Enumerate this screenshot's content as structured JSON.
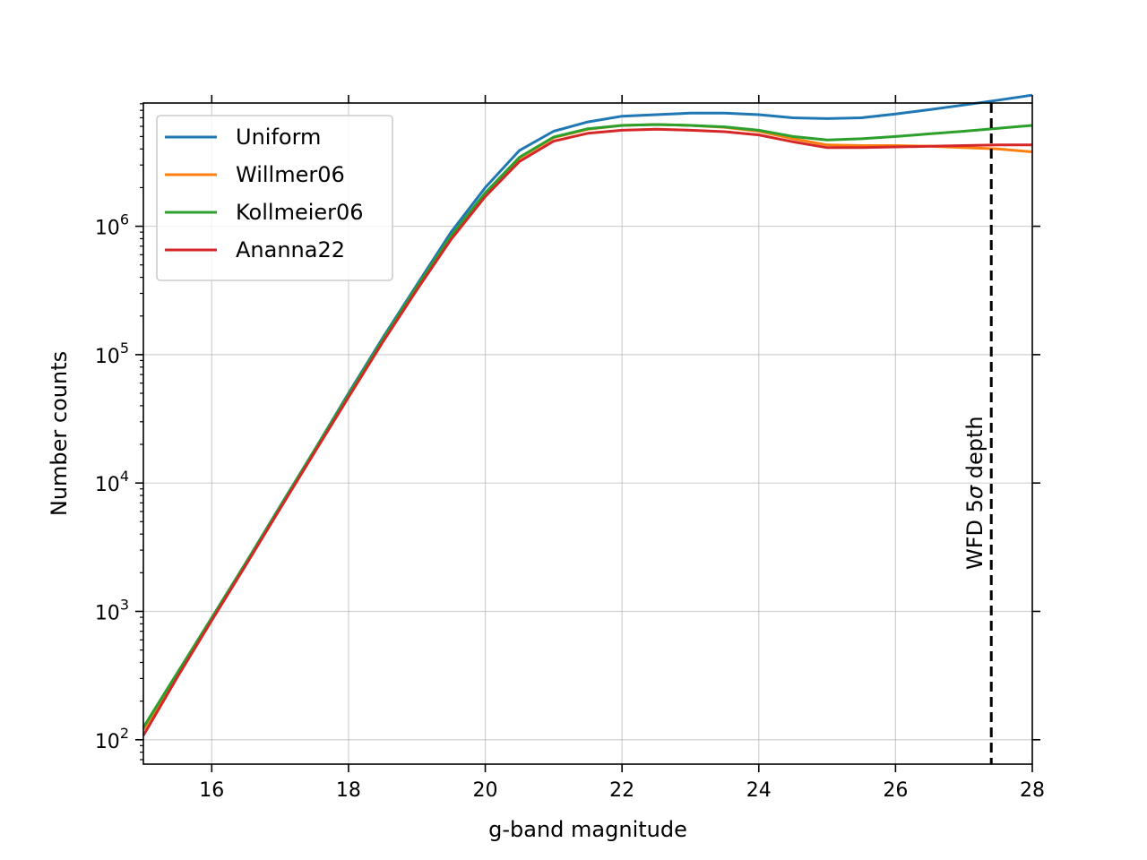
{
  "chart_data": {
    "type": "line",
    "xlabel": "g-band magnitude",
    "ylabel": "Number counts",
    "xlim": [
      15,
      28
    ],
    "ylim_log10": [
      1.81,
      6.96
    ],
    "yscale": "log",
    "grid": true,
    "legend_position": "upper-left",
    "x_ticks": [
      16,
      18,
      20,
      22,
      24,
      26,
      28
    ],
    "x_tick_labels": [
      "16",
      "18",
      "20",
      "22",
      "24",
      "26",
      "28"
    ],
    "y_ticks_log10": [
      2,
      3,
      4,
      5,
      6
    ],
    "y_tick_labels": [
      {
        "base": "10",
        "exp": "2"
      },
      {
        "base": "10",
        "exp": "3"
      },
      {
        "base": "10",
        "exp": "4"
      },
      {
        "base": "10",
        "exp": "5"
      },
      {
        "base": "10",
        "exp": "6"
      }
    ],
    "x": [
      15,
      15.5,
      16,
      16.5,
      17,
      17.5,
      18,
      18.5,
      19,
      19.5,
      20,
      20.5,
      21,
      21.5,
      22,
      22.5,
      23,
      23.5,
      24,
      24.5,
      25,
      25.5,
      26,
      26.5,
      27,
      27.5,
      28
    ],
    "series": [
      {
        "name": "Uniform",
        "color": "#1f77b4",
        "values": [
          120,
          330,
          890,
          2400,
          6600,
          18000,
          50000,
          135000,
          350000,
          900000,
          2000000,
          3900000,
          5500000,
          6500000,
          7200000,
          7400000,
          7600000,
          7600000,
          7400000,
          7000000,
          6900000,
          7000000,
          7500000,
          8100000,
          8800000,
          9600000,
          10500000
        ]
      },
      {
        "name": "Willmer06",
        "color": "#ff7f0e",
        "values": [
          120,
          330,
          880,
          2380,
          6500,
          17800,
          48500,
          130000,
          335000,
          840000,
          1800000,
          3400000,
          4900000,
          5700000,
          6100000,
          6200000,
          6100000,
          5900000,
          5500000,
          4800000,
          4300000,
          4250000,
          4250000,
          4200000,
          4100000,
          4000000,
          3800000
        ]
      },
      {
        "name": "Kollmeier06",
        "color": "#2ca02c",
        "values": [
          125,
          335,
          890,
          2400,
          6550,
          17900,
          48800,
          131000,
          338000,
          845000,
          1820000,
          3450000,
          4950000,
          5750000,
          6100000,
          6200000,
          6100000,
          5950000,
          5600000,
          5000000,
          4700000,
          4800000,
          5000000,
          5250000,
          5500000,
          5800000,
          6100000
        ]
      },
      {
        "name": "Ananna22",
        "color": "#d62728",
        "values": [
          108,
          310,
          850,
          2300,
          6300,
          17200,
          46500,
          125000,
          320000,
          790000,
          1700000,
          3200000,
          4600000,
          5300000,
          5600000,
          5700000,
          5600000,
          5450000,
          5150000,
          4550000,
          4100000,
          4100000,
          4150000,
          4200000,
          4250000,
          4300000,
          4300000
        ]
      }
    ],
    "vline": {
      "x": 27.4,
      "style": "dashed",
      "color": "#000000",
      "label_prefix": "WFD 5",
      "label_symbol": "σ",
      "label_suffix": " depth"
    }
  }
}
